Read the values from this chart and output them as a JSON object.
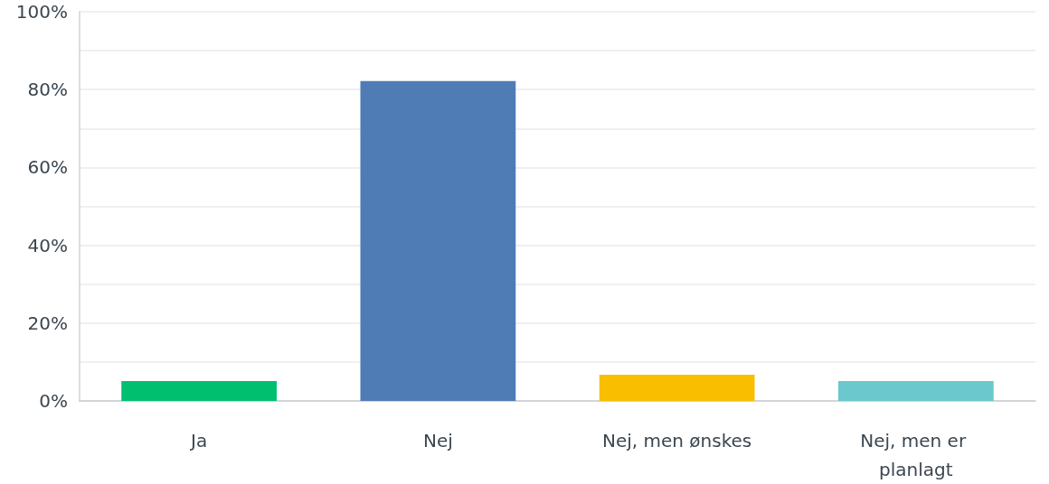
{
  "chart_data": {
    "type": "bar",
    "categories": [
      "Ja",
      "Nej",
      "Nej, men ønskes",
      "Nej, men er planlagt"
    ],
    "values": [
      5.1,
      82.2,
      6.7,
      5.1
    ],
    "colors": [
      "#00bf6f",
      "#507cb6",
      "#f9be00",
      "#6bc8cd"
    ],
    "ylim": [
      0,
      100
    ],
    "yticks": [
      {
        "value": 0,
        "label": "0%"
      },
      {
        "value": 10,
        "label": null
      },
      {
        "value": 20,
        "label": "20%"
      },
      {
        "value": 30,
        "label": null
      },
      {
        "value": 40,
        "label": "40%"
      },
      {
        "value": 50,
        "label": null
      },
      {
        "value": 60,
        "label": "60%"
      },
      {
        "value": 70,
        "label": null
      },
      {
        "value": 80,
        "label": "80%"
      },
      {
        "value": 90,
        "label": null
      },
      {
        "value": 100,
        "label": "100%"
      }
    ],
    "grid": "y"
  }
}
